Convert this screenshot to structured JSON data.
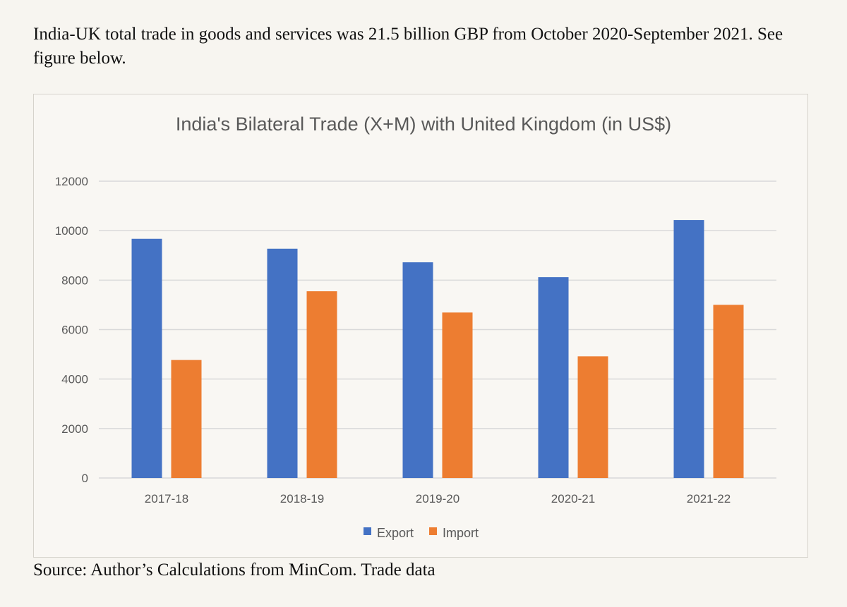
{
  "intro_text": "India-UK total trade in goods and services was 21.5 billion GBP from October 2020-September 2021. See figure below.",
  "source_text": "Source: Author’s Calculations from MinCom. Trade data",
  "chart_data": {
    "type": "bar",
    "title": "India's Bilateral Trade (X+M) with United Kingdom (in US$)",
    "xlabel": "",
    "ylabel": "",
    "categories": [
      "2017-18",
      "2018-19",
      "2019-20",
      "2020-21",
      "2021-22"
    ],
    "series": [
      {
        "name": "Export",
        "color": "#4472c4",
        "values": [
          9670,
          9270,
          8720,
          8120,
          10430
        ]
      },
      {
        "name": "Import",
        "color": "#ed7d31",
        "values": [
          4770,
          7550,
          6690,
          4920,
          7000
        ]
      }
    ],
    "ylim": [
      0,
      12000
    ],
    "yticks": [
      "0",
      "2000",
      "4000",
      "6000",
      "8000",
      "10000",
      "12000"
    ],
    "grid": true,
    "legend": "bottom"
  }
}
